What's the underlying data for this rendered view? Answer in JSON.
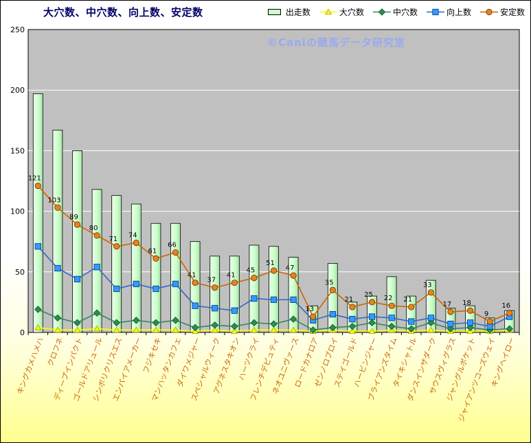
{
  "title": "大穴数、中穴数、向上数、安定数",
  "watermark": "©Caniの競馬データ研究室",
  "colors": {
    "title": "#000066",
    "watermark": "#99aaee",
    "plot_bg": "#c0c0c0",
    "grid": "#ffffff",
    "x_labels": "#cc6600",
    "y_labels": "#000000",
    "bar_fill": "#ccffcc",
    "background_bottom": "#ffff8e"
  },
  "chart_data": {
    "type": "bar",
    "title": "大穴数、中穴数、向上数、安定数",
    "xlabel": "",
    "ylabel": "",
    "ylim": [
      0,
      250
    ],
    "ytick": 50,
    "grid": true,
    "legend_position": "top",
    "categories": [
      "キングカメハメハ",
      "クロフネ",
      "ディープインパクト",
      "ゴールドアリュール",
      "シンボリクリスエス",
      "エンパイアメーカー",
      "フジキセキ",
      "マンハッタンカフェ",
      "ダイワメジャー",
      "スペシャルウィーク",
      "アグネスタキオン",
      "ハーツクライ",
      "フレンチデピュティ",
      "ネオユニヴァース",
      "ロードカナロア",
      "ゼンノロブロイ",
      "ステイゴールド",
      "ハービンジャー",
      "ブライアンズタイム",
      "タイキシャトル",
      "ダンスインザダーク",
      "サウスヴィグラス",
      "ジャングルポケット",
      "ジャイアンツコーズウェイ",
      "キングヘイロー"
    ],
    "series": [
      {
        "name": "出走数",
        "type": "bar",
        "marker": "rect",
        "color": "#000000",
        "fill": "#ccffcc",
        "edge": "#000000",
        "values": [
          197,
          167,
          150,
          118,
          113,
          106,
          90,
          90,
          75,
          63,
          63,
          72,
          71,
          62,
          22,
          57,
          25,
          30,
          46,
          30,
          43,
          20,
          22,
          12,
          18
        ],
        "show_labels": false
      },
      {
        "name": "大穴数",
        "type": "line",
        "marker": "triangle",
        "color": "#ffff00",
        "fill": "#ffff00",
        "edge": "#a0a000",
        "values": [
          4,
          2,
          2,
          3,
          2,
          2,
          2,
          2,
          1,
          2,
          1,
          2,
          2,
          2,
          1,
          2,
          1,
          1,
          2,
          1,
          2,
          1,
          1,
          1,
          2
        ],
        "show_labels": false
      },
      {
        "name": "中穴数",
        "type": "line",
        "marker": "diamond",
        "color": "#2e8b57",
        "fill": "#2e8b57",
        "edge": "#14532d",
        "values": [
          19,
          12,
          8,
          16,
          8,
          10,
          8,
          10,
          4,
          6,
          5,
          8,
          7,
          11,
          2,
          4,
          5,
          8,
          5,
          3,
          8,
          3,
          4,
          2,
          3
        ],
        "show_labels": false
      },
      {
        "name": "向上数",
        "type": "line",
        "marker": "square",
        "color": "#3366cc",
        "fill": "#3399ff",
        "edge": "#003380",
        "values": [
          71,
          53,
          44,
          54,
          36,
          40,
          36,
          40,
          22,
          20,
          18,
          28,
          27,
          27,
          10,
          15,
          11,
          13,
          12,
          9,
          12,
          7,
          8,
          5,
          13
        ],
        "show_labels": false
      },
      {
        "name": "安定数",
        "type": "line",
        "marker": "circle",
        "color": "#cc6600",
        "fill": "#e8821e",
        "edge": "#663300",
        "values": [
          121,
          103,
          89,
          80,
          71,
          74,
          61,
          66,
          41,
          37,
          41,
          45,
          51,
          47,
          13,
          35,
          21,
          25,
          22,
          21,
          33,
          17,
          18,
          9,
          16
        ],
        "show_labels": true
      }
    ]
  }
}
